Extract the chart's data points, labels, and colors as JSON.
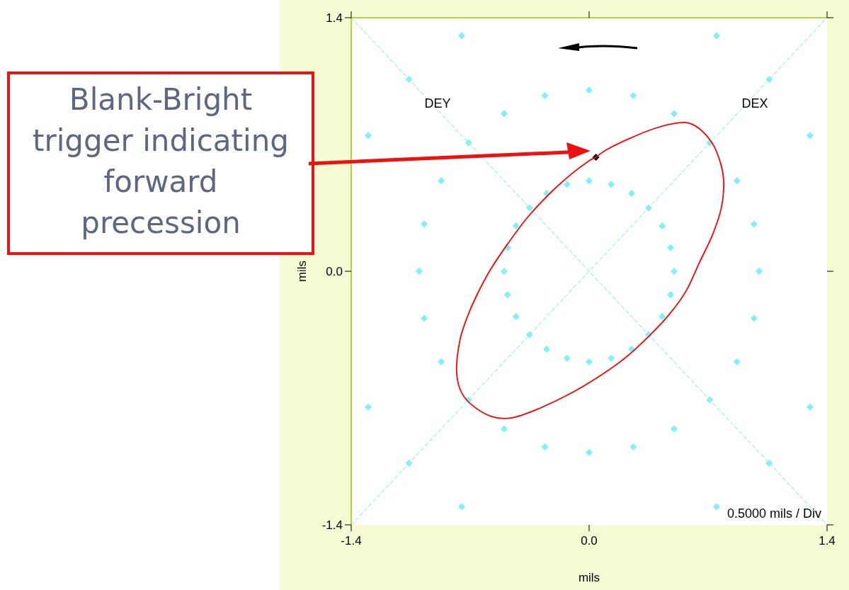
{
  "chart_data": {
    "type": "line",
    "xlabel": "mils",
    "ylabel": "mils",
    "xlim": [
      -1.4,
      1.4
    ],
    "ylim": [
      -1.4,
      1.4
    ],
    "xticks": [
      -1.4,
      {
        "value": 0,
        "label": "0.0"
      },
      1.4
    ],
    "yticks": [
      -1.4,
      {
        "value": 0,
        "label": "0.0"
      },
      1.4
    ],
    "series": [
      {
        "type": "scatter",
        "color": "#7ff0f5",
        "marker": "diamond",
        "x": [
          0.5,
          0.48,
          0.43,
          0.35,
          0.25,
          0.13,
          0,
          -0.13,
          -0.25,
          -0.35,
          -0.43,
          -0.48,
          -0.5,
          -0.48,
          -0.43,
          -0.35,
          -0.25,
          -0.13,
          0,
          0.13,
          0.25,
          0.35,
          0.43,
          0.48,
          1,
          0.97,
          0.87,
          0.71,
          0.5,
          0.26,
          0,
          -0.26,
          -0.5,
          -0.71,
          -0.87,
          -0.97,
          -1,
          -0.97,
          -0.87,
          -0.71,
          -0.5,
          -0.26,
          0,
          0.26,
          0.5,
          0.71,
          0.87,
          0.97,
          1.3,
          1.06,
          0.75,
          -0.75,
          -1.06,
          -1.3,
          -1.3,
          -1.06,
          -0.75,
          0.75,
          1.06,
          1.3
        ],
        "values": [
          0,
          0.13,
          0.25,
          0.35,
          0.43,
          0.48,
          0.5,
          0.48,
          0.43,
          0.35,
          0.25,
          0.13,
          0,
          -0.13,
          -0.25,
          -0.35,
          -0.43,
          -0.48,
          -0.5,
          -0.48,
          -0.43,
          -0.35,
          -0.25,
          -0.13,
          0,
          0.26,
          0.5,
          0.71,
          0.87,
          0.97,
          1,
          0.97,
          0.87,
          0.71,
          0.5,
          0.26,
          0,
          -0.26,
          -0.5,
          -0.71,
          -0.87,
          -0.97,
          -1,
          -0.97,
          -0.87,
          -0.71,
          -0.5,
          -0.26,
          0.75,
          1.06,
          1.3,
          1.3,
          1.06,
          0.75,
          -0.75,
          -1.06,
          -1.3,
          -1.3,
          -1.06,
          -0.75
        ]
      },
      {
        "color": "#9ef0f0",
        "line_style": "dashed",
        "marker": "none",
        "x": [
          -1.4,
          1.4
        ],
        "values": [
          -1.4,
          1.4
        ]
      },
      {
        "color": "#9ef0f0",
        "line_style": "dashed",
        "marker": "none",
        "x": [
          -1.4,
          1.4
        ],
        "values": [
          1.4,
          -1.4
        ]
      },
      {
        "type": "scatter",
        "color": "#000000",
        "marker": "diamond",
        "x": [
          0.04
        ],
        "values": [
          0.63
        ]
      }
    ],
    "annotations": [
      "DEY",
      "DEX",
      "0.5000 mils / Div",
      "Blank-Bright trigger indicating forward precession"
    ]
  }
}
